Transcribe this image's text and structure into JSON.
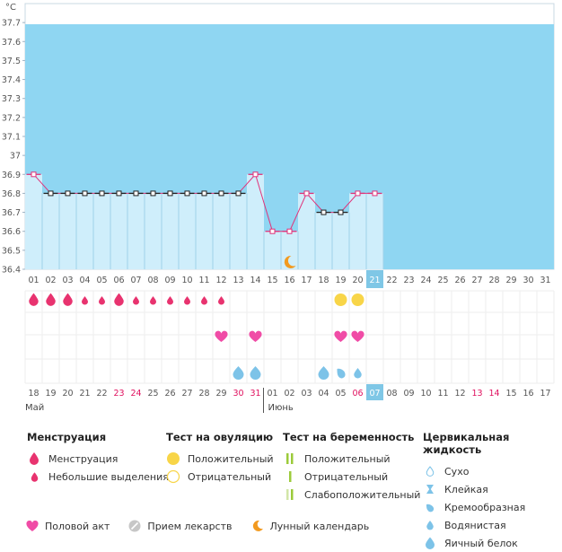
{
  "chart_data": {
    "type": "line",
    "ylabel": "°C",
    "y_ticks": [
      "36.4",
      "36.5",
      "36.6",
      "36.7",
      "36.8",
      "36.9",
      "37",
      "37.1",
      "37.2",
      "37.3",
      "37.4",
      "37.5",
      "37.6",
      "37.7"
    ],
    "ylim": [
      36.4,
      37.8
    ],
    "cycle_days": [
      "01",
      "02",
      "03",
      "04",
      "05",
      "06",
      "07",
      "08",
      "09",
      "10",
      "11",
      "12",
      "13",
      "14",
      "15",
      "16",
      "17",
      "18",
      "19",
      "20",
      "21",
      "22",
      "23",
      "24",
      "25",
      "26",
      "27",
      "28",
      "29",
      "30",
      "31"
    ],
    "temperatures": [
      36.9,
      36.8,
      36.8,
      36.8,
      36.8,
      36.8,
      36.8,
      36.8,
      36.8,
      36.8,
      36.8,
      36.8,
      36.8,
      36.9,
      36.6,
      36.6,
      36.8,
      36.7,
      36.7,
      36.8,
      36.8
    ],
    "current_cycle_day": "21",
    "dates": [
      "18",
      "19",
      "20",
      "21",
      "22",
      "23",
      "24",
      "25",
      "26",
      "27",
      "28",
      "29",
      "30",
      "31",
      "01",
      "02",
      "03",
      "04",
      "05",
      "06",
      "07",
      "08",
      "09",
      "10",
      "11",
      "12",
      "13",
      "14",
      "15",
      "16",
      "17"
    ],
    "date_weekend": [
      false,
      false,
      false,
      false,
      false,
      true,
      true,
      false,
      false,
      false,
      false,
      false,
      true,
      true,
      false,
      false,
      false,
      false,
      false,
      true,
      false,
      false,
      false,
      false,
      false,
      false,
      true,
      true,
      false,
      false,
      false
    ],
    "current_date": "07",
    "month_labels": [
      "Май",
      "Июнь"
    ],
    "moon_day": "16",
    "menstruation": [
      2,
      2,
      2,
      1,
      1,
      2,
      1,
      1,
      1,
      1,
      1,
      1,
      0,
      0,
      0,
      0,
      0,
      0,
      0,
      0,
      0,
      0,
      0,
      0,
      0,
      0,
      0,
      0,
      0,
      0,
      0
    ],
    "ovulation_test": [
      0,
      0,
      0,
      0,
      0,
      0,
      0,
      0,
      0,
      0,
      0,
      0,
      0,
      0,
      0,
      0,
      0,
      0,
      1,
      1,
      0,
      0,
      0,
      0,
      0,
      0,
      0,
      0,
      0,
      0,
      0
    ],
    "intercourse": [
      0,
      0,
      0,
      0,
      0,
      0,
      0,
      0,
      0,
      0,
      0,
      1,
      0,
      1,
      0,
      0,
      0,
      0,
      1,
      1,
      0,
      0,
      0,
      0,
      0,
      0,
      0,
      0,
      0,
      0,
      0
    ],
    "cervical": [
      "",
      "",
      "",
      "",
      "",
      "",
      "",
      "",
      "",
      "",
      "",
      "",
      "egg",
      "egg",
      "",
      "",
      "",
      "egg",
      "creamy",
      "watery",
      "",
      "",
      "",
      "",
      "",
      "",
      "",
      "",
      "",
      "",
      ""
    ],
    "colors": {
      "fill": "#cfeefb",
      "sky": "#8fd6f2",
      "line": "#e0337a",
      "pink": "#e8336f",
      "weekend": "#e0115f",
      "heart": "#f04ca6",
      "drop_blue": "#7dc3e8",
      "highlight": "#7fc7e6",
      "yellow": "#f8d548"
    }
  },
  "legend": {
    "menstruation": {
      "title": "Менструация",
      "items": [
        "Менструация",
        "Небольшие выделения"
      ]
    },
    "ovulation": {
      "title": "Тест на овуляцию",
      "items": [
        "Положительный",
        "Отрицательный"
      ]
    },
    "pregnancy": {
      "title": "Тест на беременность",
      "items": [
        "Положительный",
        "Отрицательный",
        "Слабоположительный"
      ]
    },
    "cervical": {
      "title": "Цервикальная жидкость",
      "items": [
        "Сухо",
        "Клейкая",
        "Кремообразная",
        "Водянистая",
        "Яичный белок"
      ]
    },
    "bottom": [
      "Половой акт",
      "Прием лекарств",
      "Лунный календарь"
    ]
  }
}
